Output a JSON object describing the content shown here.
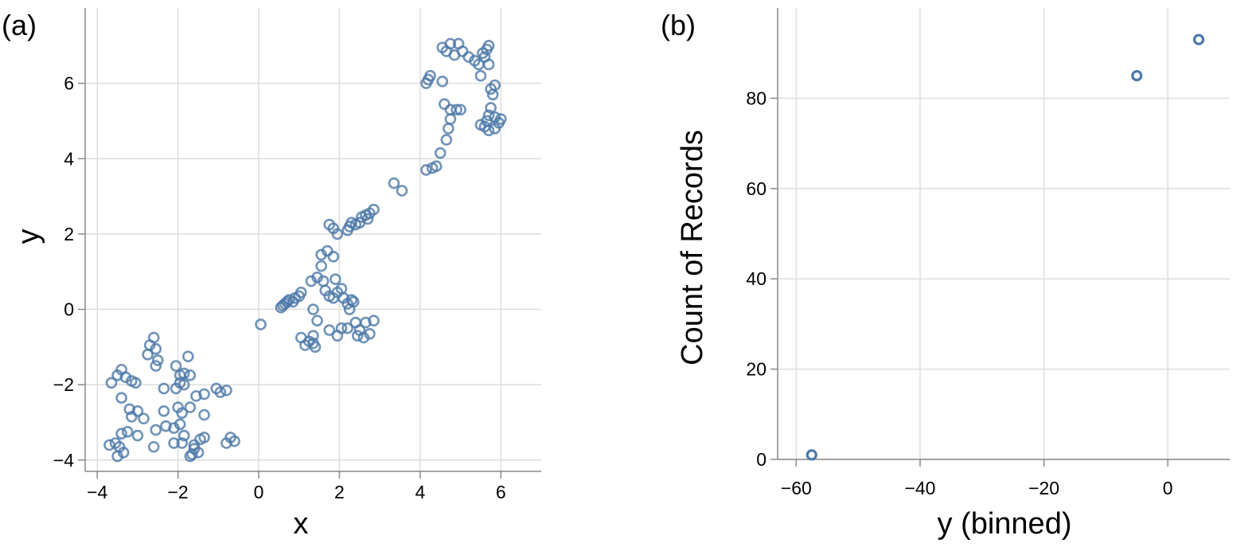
{
  "chart_data": [
    {
      "panel_label": "(a)",
      "type": "scatter",
      "xlabel": "x",
      "ylabel": "y",
      "xlim": [
        -4.3,
        7
      ],
      "ylim": [
        -4.3,
        8
      ],
      "xticks": [
        "−4",
        "−2",
        "0",
        "2",
        "4",
        "6"
      ],
      "xtick_values": [
        -4,
        -2,
        0,
        2,
        4,
        6
      ],
      "yticks": [
        "−4",
        "−2",
        "0",
        "2",
        "4",
        "6"
      ],
      "ytick_values": [
        -4,
        -2,
        0,
        2,
        4,
        6
      ],
      "grid": true,
      "marker": "open-circle",
      "points": [
        [
          -3.65,
          -1.95
        ],
        [
          -3.5,
          -1.75
        ],
        [
          -3.4,
          -1.6
        ],
        [
          -3.3,
          -1.8
        ],
        [
          -3.15,
          -1.9
        ],
        [
          -3.05,
          -1.95
        ],
        [
          -3.4,
          -2.35
        ],
        [
          -3.2,
          -2.65
        ],
        [
          -3.15,
          -2.85
        ],
        [
          -3.0,
          -2.7
        ],
        [
          -2.85,
          -2.9
        ],
        [
          -3.25,
          -3.25
        ],
        [
          -3.4,
          -3.3
        ],
        [
          -3.0,
          -3.35
        ],
        [
          -3.55,
          -3.55
        ],
        [
          -3.7,
          -3.6
        ],
        [
          -3.45,
          -3.65
        ],
        [
          -3.35,
          -3.8
        ],
        [
          -3.5,
          -3.9
        ],
        [
          -2.6,
          -0.75
        ],
        [
          -2.7,
          -0.95
        ],
        [
          -2.55,
          -1.05
        ],
        [
          -2.75,
          -1.2
        ],
        [
          -2.5,
          -1.35
        ],
        [
          -2.55,
          -1.5
        ],
        [
          -2.35,
          -2.1
        ],
        [
          -2.05,
          -1.5
        ],
        [
          -1.95,
          -1.75
        ],
        [
          -1.85,
          -1.7
        ],
        [
          -1.95,
          -1.95
        ],
        [
          -2.05,
          -2.1
        ],
        [
          -1.85,
          -2.0
        ],
        [
          -1.75,
          -1.25
        ],
        [
          -1.7,
          -1.75
        ],
        [
          -1.55,
          -2.3
        ],
        [
          -1.35,
          -2.25
        ],
        [
          -2.35,
          -2.7
        ],
        [
          -2.0,
          -2.6
        ],
        [
          -1.9,
          -2.75
        ],
        [
          -1.7,
          -2.6
        ],
        [
          -1.35,
          -2.8
        ],
        [
          -2.55,
          -3.2
        ],
        [
          -2.3,
          -3.1
        ],
        [
          -2.1,
          -3.15
        ],
        [
          -1.95,
          -3.05
        ],
        [
          -1.85,
          -3.35
        ],
        [
          -1.35,
          -3.4
        ],
        [
          -1.45,
          -3.45
        ],
        [
          -2.1,
          -3.55
        ],
        [
          -1.9,
          -3.55
        ],
        [
          -1.6,
          -3.7
        ],
        [
          -1.5,
          -3.8
        ],
        [
          -1.65,
          -3.85
        ],
        [
          -1.7,
          -3.9
        ],
        [
          -2.6,
          -3.65
        ],
        [
          -0.8,
          -3.55
        ],
        [
          -0.7,
          -3.4
        ],
        [
          -0.6,
          -3.5
        ],
        [
          -1.05,
          -2.1
        ],
        [
          -0.95,
          -2.2
        ],
        [
          -0.8,
          -2.15
        ],
        [
          -1.6,
          -3.6
        ],
        [
          0.05,
          -0.4
        ],
        [
          0.55,
          0.05
        ],
        [
          0.6,
          0.1
        ],
        [
          0.65,
          0.15
        ],
        [
          0.7,
          0.2
        ],
        [
          0.75,
          0.25
        ],
        [
          0.85,
          0.2
        ],
        [
          0.9,
          0.3
        ],
        [
          1.0,
          0.35
        ],
        [
          1.05,
          0.45
        ],
        [
          1.05,
          -0.75
        ],
        [
          1.15,
          -0.95
        ],
        [
          1.25,
          -0.85
        ],
        [
          1.35,
          -0.9
        ],
        [
          1.4,
          -1.0
        ],
        [
          1.35,
          -0.7
        ],
        [
          1.35,
          0.0
        ],
        [
          1.45,
          -0.3
        ],
        [
          1.3,
          0.75
        ],
        [
          1.45,
          0.85
        ],
        [
          1.6,
          0.75
        ],
        [
          1.65,
          0.5
        ],
        [
          1.55,
          1.15
        ],
        [
          1.55,
          1.45
        ],
        [
          1.7,
          1.55
        ],
        [
          1.85,
          1.4
        ],
        [
          1.75,
          0.35
        ],
        [
          1.85,
          0.3
        ],
        [
          1.95,
          0.45
        ],
        [
          1.9,
          0.8
        ],
        [
          2.05,
          0.55
        ],
        [
          2.1,
          0.3
        ],
        [
          2.2,
          0.15
        ],
        [
          2.3,
          0.25
        ],
        [
          2.35,
          0.2
        ],
        [
          2.25,
          0.0
        ],
        [
          1.75,
          -0.55
        ],
        [
          1.95,
          -0.7
        ],
        [
          2.05,
          -0.5
        ],
        [
          2.2,
          -0.5
        ],
        [
          2.4,
          -0.35
        ],
        [
          2.5,
          -0.55
        ],
        [
          2.45,
          -0.7
        ],
        [
          2.6,
          -0.75
        ],
        [
          2.65,
          -0.35
        ],
        [
          2.75,
          -0.65
        ],
        [
          2.85,
          -0.3
        ],
        [
          1.75,
          2.25
        ],
        [
          1.85,
          2.15
        ],
        [
          1.95,
          2.0
        ],
        [
          2.2,
          2.1
        ],
        [
          2.25,
          2.2
        ],
        [
          2.3,
          2.3
        ],
        [
          2.4,
          2.25
        ],
        [
          2.5,
          2.3
        ],
        [
          2.55,
          2.45
        ],
        [
          2.65,
          2.5
        ],
        [
          2.75,
          2.55
        ],
        [
          2.85,
          2.65
        ],
        [
          2.7,
          2.4
        ],
        [
          3.35,
          3.35
        ],
        [
          3.55,
          3.15
        ],
        [
          4.15,
          3.7
        ],
        [
          4.3,
          3.75
        ],
        [
          4.4,
          3.8
        ],
        [
          4.5,
          4.15
        ],
        [
          4.65,
          4.5
        ],
        [
          4.7,
          4.8
        ],
        [
          4.75,
          5.05
        ],
        [
          4.6,
          5.45
        ],
        [
          4.75,
          5.3
        ],
        [
          4.9,
          5.3
        ],
        [
          5.0,
          5.3
        ],
        [
          4.15,
          6.0
        ],
        [
          4.2,
          6.1
        ],
        [
          4.25,
          6.2
        ],
        [
          4.55,
          6.05
        ],
        [
          4.55,
          6.95
        ],
        [
          4.65,
          6.85
        ],
        [
          4.75,
          7.05
        ],
        [
          4.85,
          6.75
        ],
        [
          4.95,
          7.05
        ],
        [
          5.05,
          6.85
        ],
        [
          5.2,
          6.7
        ],
        [
          5.35,
          6.6
        ],
        [
          5.45,
          6.5
        ],
        [
          5.5,
          6.2
        ],
        [
          5.55,
          6.8
        ],
        [
          5.6,
          6.7
        ],
        [
          5.65,
          6.9
        ],
        [
          5.7,
          7.0
        ],
        [
          5.7,
          6.5
        ],
        [
          5.75,
          5.85
        ],
        [
          5.8,
          5.7
        ],
        [
          5.85,
          5.95
        ],
        [
          5.75,
          5.35
        ],
        [
          5.7,
          5.15
        ],
        [
          5.65,
          5.0
        ],
        [
          5.6,
          4.85
        ],
        [
          5.5,
          4.9
        ],
        [
          5.7,
          4.75
        ],
        [
          5.85,
          4.8
        ],
        [
          5.95,
          4.95
        ],
        [
          6.0,
          5.05
        ],
        [
          5.85,
          5.1
        ]
      ]
    },
    {
      "panel_label": "(b)",
      "type": "scatter",
      "xlabel": "y (binned)",
      "ylabel": "Count of Records",
      "xlim": [
        -63,
        10
      ],
      "ylim": [
        0,
        100
      ],
      "xticks": [
        "−60",
        "−40",
        "−20",
        "0"
      ],
      "xtick_values": [
        -60,
        -40,
        -20,
        0
      ],
      "yticks": [
        "0",
        "20",
        "40",
        "60",
        "80"
      ],
      "ytick_values": [
        0,
        20,
        40,
        60,
        80
      ],
      "grid": true,
      "marker": "open-circle",
      "points": [
        [
          -57.5,
          1
        ],
        [
          -5,
          85
        ],
        [
          5,
          93
        ]
      ]
    }
  ],
  "colors": {
    "marker": "#4c78a8",
    "grid": "#dddddd",
    "axis": "#888888"
  }
}
